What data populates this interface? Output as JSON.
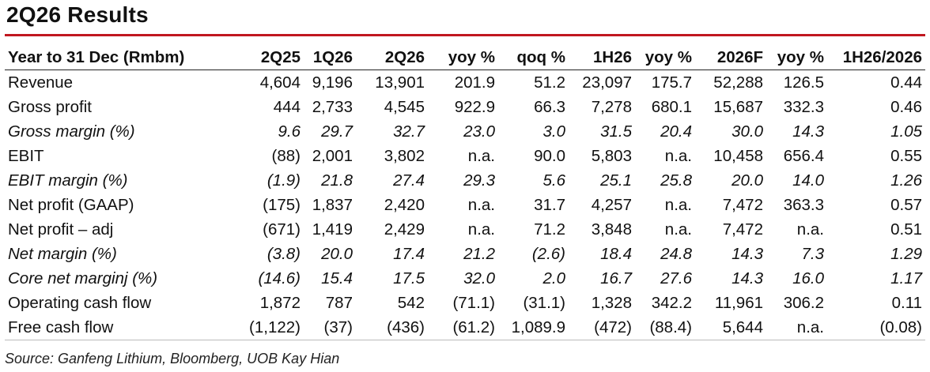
{
  "title": "2Q26 Results",
  "columns": [
    "Year to 31 Dec (Rmbm)",
    "2Q25",
    "1Q26",
    "2Q26",
    "yoy %",
    "qoq %",
    "1H26",
    "yoy %",
    "2026F",
    "yoy %",
    "1H26/2026"
  ],
  "rows": [
    {
      "label": "Revenue",
      "italic": false,
      "values": [
        "4,604",
        "9,196",
        "13,901",
        "201.9",
        "51.2",
        "23,097",
        "175.7",
        "52,288",
        "126.5",
        "0.44"
      ]
    },
    {
      "label": "Gross profit",
      "italic": false,
      "values": [
        "444",
        "2,733",
        "4,545",
        "922.9",
        "66.3",
        "7,278",
        "680.1",
        "15,687",
        "332.3",
        "0.46"
      ]
    },
    {
      "label": "Gross margin (%)",
      "italic": true,
      "values": [
        "9.6",
        "29.7",
        "32.7",
        "23.0",
        "3.0",
        "31.5",
        "20.4",
        "30.0",
        "14.3",
        "1.05"
      ]
    },
    {
      "label": "EBIT",
      "italic": false,
      "values": [
        "(88)",
        "2,001",
        "3,802",
        "n.a.",
        "90.0",
        "5,803",
        "n.a.",
        "10,458",
        "656.4",
        "0.55"
      ]
    },
    {
      "label": "EBIT margin (%)",
      "italic": true,
      "values": [
        "(1.9)",
        "21.8",
        "27.4",
        "29.3",
        "5.6",
        "25.1",
        "25.8",
        "20.0",
        "14.0",
        "1.26"
      ]
    },
    {
      "label": "Net profit (GAAP)",
      "italic": false,
      "values": [
        "(175)",
        "1,837",
        "2,420",
        "n.a.",
        "31.7",
        "4,257",
        "n.a.",
        "7,472",
        "363.3",
        "0.57"
      ]
    },
    {
      "label": "Net profit – adj",
      "italic": false,
      "values": [
        "(671)",
        "1,419",
        "2,429",
        "n.a.",
        "71.2",
        "3,848",
        "n.a.",
        "7,472",
        "n.a.",
        "0.51"
      ]
    },
    {
      "label": "Net margin (%)",
      "italic": true,
      "values": [
        "(3.8)",
        "20.0",
        "17.4",
        "21.2",
        "(2.6)",
        "18.4",
        "24.8",
        "14.3",
        "7.3",
        "1.29"
      ]
    },
    {
      "label": "Core net marginj (%)",
      "italic": true,
      "values": [
        "(14.6)",
        "15.4",
        "17.5",
        "32.0",
        "2.0",
        "16.7",
        "27.6",
        "14.3",
        "16.0",
        "1.17"
      ]
    },
    {
      "label": "Operating cash flow",
      "italic": false,
      "values": [
        "1,872",
        "787",
        "542",
        "(71.1)",
        "(31.1)",
        "1,328",
        "342.2",
        "11,961",
        "306.2",
        "0.11"
      ]
    },
    {
      "label": "Free cash flow",
      "italic": false,
      "values": [
        "(1,122)",
        "(37)",
        "(436)",
        "(61.2)",
        "1,089.9",
        "(472)",
        "(88.4)",
        "5,644",
        "n.a.",
        "(0.08)"
      ]
    }
  ],
  "source": "Source: Ganfeng Lithium, Bloomberg, UOB Kay Hian",
  "colors": {
    "rule": "#c0171f"
  }
}
